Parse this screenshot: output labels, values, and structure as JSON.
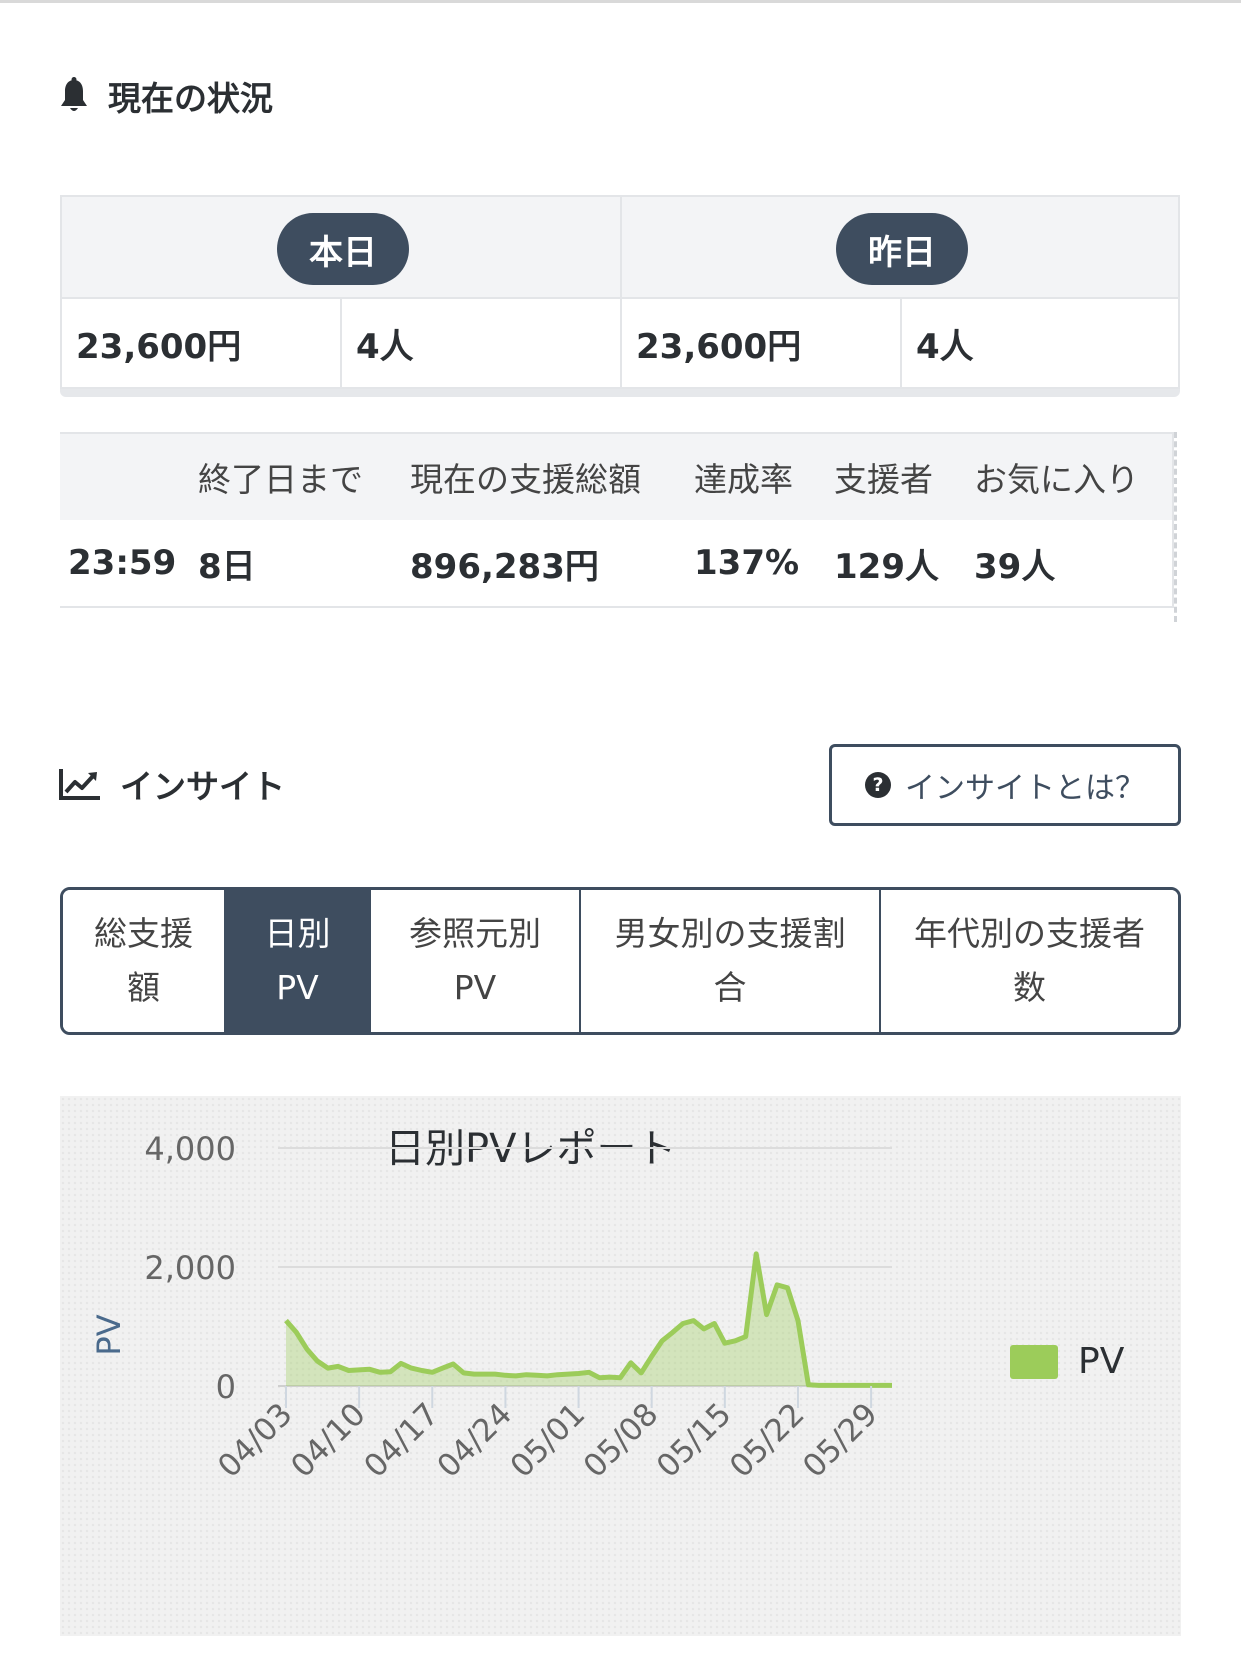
{
  "status": {
    "title": "現在の状況",
    "today_label": "本日",
    "yesterday_label": "昨日",
    "today_amount": "23,600円",
    "today_people": "4人",
    "yesterday_amount": "23,600円",
    "yesterday_people": "4人",
    "headers": [
      "",
      "終了日まで",
      "現在の支援総額",
      "達成率",
      "支援者",
      "お気に入り"
    ],
    "values": [
      "23:59",
      "8日",
      "896,283円",
      "137%",
      "129人",
      "39人"
    ]
  },
  "insight": {
    "title": "インサイト",
    "help_label": "インサイトとは？",
    "tabs": [
      {
        "line1": "総支援",
        "line2": "額"
      },
      {
        "line1": "日別",
        "line2": "PV"
      },
      {
        "line1": "参照元別",
        "line2": "PV"
      },
      {
        "line1": "男女別の支援割",
        "line2": "合"
      },
      {
        "line1": "年代別の支援者",
        "line2": "数"
      }
    ],
    "active_tab": 1
  },
  "chart_data": {
    "type": "area",
    "title": "日別PVレポート",
    "ylabel": "PV",
    "ylim": [
      0,
      4000
    ],
    "y_ticks": [
      "4,000",
      "2,000",
      "0"
    ],
    "x_tick_labels": [
      "04/03",
      "04/10",
      "04/17",
      "04/24",
      "05/01",
      "05/08",
      "05/15",
      "05/22",
      "05/29"
    ],
    "x_start": "04/03",
    "series": [
      {
        "name": "PV",
        "color": "#9ccc5a",
        "values": [
          1100,
          900,
          620,
          420,
          300,
          330,
          260,
          270,
          280,
          230,
          240,
          380,
          300,
          260,
          230,
          300,
          370,
          220,
          200,
          200,
          200,
          180,
          170,
          190,
          180,
          170,
          190,
          200,
          210,
          230,
          140,
          150,
          140,
          390,
          220,
          500,
          760,
          900,
          1050,
          1100,
          960,
          1050,
          720,
          760,
          830,
          2220,
          1200,
          1700,
          1650,
          1100,
          20,
          10,
          10,
          10,
          10,
          10,
          10,
          10,
          10
        ]
      }
    ],
    "legend_position": "right",
    "grid": true
  }
}
